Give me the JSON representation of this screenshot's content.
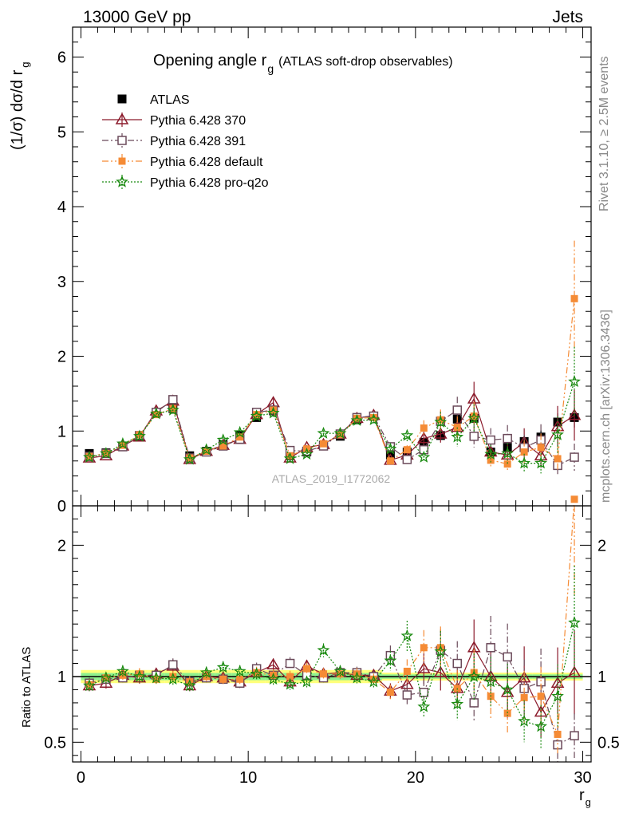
{
  "header": {
    "left": "13000 GeV pp",
    "right": "Jets"
  },
  "chart_data": [
    {
      "type": "scatter",
      "panel": "main",
      "title_main": "Opening angle r",
      "title_sub": "g",
      "title_suffix": "(ATLAS soft-drop observables)",
      "ylabel": "(1/σ) dσ/d r",
      "ylabel_sub": "g",
      "watermark": "ATLAS_2019_I1772062",
      "ylim": [
        0,
        6.4
      ],
      "yticks": [
        0,
        1,
        2,
        3,
        4,
        5,
        6
      ],
      "x": [
        0.5,
        1.5,
        2.5,
        3.5,
        4.5,
        5.5,
        6.5,
        7.5,
        8.5,
        9.5,
        10.5,
        11.5,
        12.5,
        13.5,
        14.5,
        15.5,
        16.5,
        17.5,
        18.5,
        19.5,
        20.5,
        21.5,
        22.5,
        23.5,
        24.5,
        25.5,
        26.5,
        27.5,
        28.5,
        29.5
      ],
      "series": [
        {
          "name": "ATLAS",
          "color": "#000000",
          "marker": "filled-square",
          "values": [
            0.7,
            0.71,
            0.8,
            0.93,
            1.24,
            1.3,
            0.67,
            0.73,
            0.82,
            0.94,
            1.18,
            1.27,
            0.67,
            0.72,
            0.81,
            0.93,
            1.15,
            1.2,
            0.68,
            0.72,
            0.85,
            0.94,
            1.16,
            1.17,
            0.72,
            0.78,
            0.86,
            0.92,
            1.12,
            1.18
          ]
        },
        {
          "name": "Pythia 6.428 370",
          "color": "#8b1a2b",
          "marker": "open-triangle",
          "line": "solid",
          "values": [
            0.64,
            0.67,
            0.8,
            0.92,
            1.27,
            1.4,
            0.62,
            0.73,
            0.81,
            0.89,
            1.22,
            1.38,
            0.64,
            0.78,
            0.82,
            0.96,
            1.17,
            1.21,
            0.61,
            0.68,
            0.9,
            0.96,
            1.05,
            1.43,
            0.72,
            0.68,
            0.85,
            0.67,
            1.06,
            1.21
          ]
        },
        {
          "name": "Pythia 6.428 391",
          "color": "#6b4a5a",
          "marker": "open-square",
          "line": "dashdot",
          "values": [
            0.66,
            0.7,
            0.79,
            0.94,
            1.25,
            1.42,
            0.64,
            0.72,
            0.8,
            0.89,
            1.25,
            1.28,
            0.74,
            0.73,
            0.8,
            0.96,
            1.18,
            1.2,
            0.79,
            0.62,
            0.75,
            1.13,
            1.28,
            0.93,
            0.88,
            0.9,
            0.78,
            0.88,
            0.54,
            0.65
          ]
        },
        {
          "name": "Pythia 6.428 default",
          "color": "#f58b35",
          "marker": "filled-square-small",
          "line": "dashdotdot",
          "values": [
            0.66,
            0.7,
            0.81,
            0.95,
            1.22,
            1.3,
            0.64,
            0.73,
            0.8,
            0.92,
            1.22,
            1.28,
            0.67,
            0.76,
            0.83,
            0.95,
            1.17,
            1.18,
            0.6,
            0.75,
            1.04,
            1.15,
            1.05,
            1.2,
            0.61,
            0.56,
            0.72,
            0.78,
            0.63,
            2.77
          ]
        },
        {
          "name": "Pythia 6.428 pro-q2o",
          "color": "#1a8a10",
          "marker": "star",
          "line": "dotted",
          "values": [
            0.65,
            0.7,
            0.83,
            0.93,
            1.23,
            1.28,
            0.62,
            0.75,
            0.88,
            0.98,
            1.2,
            1.24,
            0.63,
            0.69,
            0.97,
            0.97,
            1.14,
            1.15,
            0.76,
            0.94,
            0.65,
            1.12,
            0.92,
            1.17,
            0.69,
            0.7,
            0.57,
            0.57,
            0.95,
            1.66
          ]
        }
      ]
    },
    {
      "type": "scatter",
      "panel": "ratio",
      "ylabel": "Ratio to ATLAS",
      "xlabel": "r",
      "xlabel_sub": "g",
      "xlim": [
        -0.5,
        30.5
      ],
      "xticks": [
        0,
        10,
        20,
        30
      ],
      "ylim": [
        0.35,
        2.3
      ],
      "yticks": [
        0.5,
        1,
        2
      ],
      "ytick_labels": [
        "0.5",
        "1",
        "2"
      ],
      "reference": 1,
      "series": [
        {
          "name": "Pythia 6.428 370",
          "color": "#8b1a2b",
          "values": [
            0.93,
            0.95,
            1.01,
            0.99,
            1.02,
            1.08,
            0.93,
            1.0,
            0.99,
            0.96,
            1.03,
            1.09,
            0.96,
            1.08,
            1.02,
            1.03,
            1.01,
            1.01,
            0.89,
            0.94,
            1.06,
            1.03,
            0.91,
            1.22,
            1.0,
            0.88,
            0.99,
            0.73,
            0.95,
            1.03
          ]
        },
        {
          "name": "Pythia 6.428 391",
          "color": "#6b4a5a",
          "values": [
            0.95,
            0.98,
            0.99,
            1.01,
            1.01,
            1.09,
            0.96,
            0.99,
            0.98,
            0.95,
            1.06,
            1.01,
            1.1,
            1.01,
            0.99,
            1.03,
            1.03,
            1.0,
            1.16,
            0.86,
            0.88,
            1.2,
            1.1,
            0.8,
            1.22,
            1.15,
            0.91,
            0.96,
            0.48,
            0.55
          ]
        },
        {
          "name": "Pythia 6.428 default",
          "color": "#f58b35",
          "values": [
            0.94,
            0.99,
            1.01,
            1.02,
            0.98,
            1.0,
            0.96,
            1.0,
            0.98,
            0.98,
            1.03,
            1.01,
            1.0,
            1.06,
            1.02,
            1.02,
            1.02,
            0.98,
            0.88,
            1.04,
            1.22,
            1.22,
            0.91,
            1.03,
            0.85,
            0.72,
            0.84,
            0.85,
            0.56,
            2.35
          ]
        },
        {
          "name": "Pythia 6.428 pro-q2o",
          "color": "#1a8a10",
          "values": [
            0.93,
            0.99,
            1.04,
            1.0,
            0.99,
            0.98,
            0.93,
            1.03,
            1.07,
            1.04,
            1.02,
            0.98,
            0.94,
            0.96,
            1.2,
            1.04,
            0.99,
            0.96,
            1.12,
            1.31,
            0.77,
            1.19,
            0.79,
            1.0,
            0.96,
            0.9,
            0.66,
            0.62,
            0.85,
            1.41
          ]
        }
      ]
    }
  ],
  "side_labels": {
    "rivet": "Rivet 3.1.10, ≥ 2.5M events",
    "mcplots": "mcplots.cern.ch [arXiv:1306.3436]"
  }
}
